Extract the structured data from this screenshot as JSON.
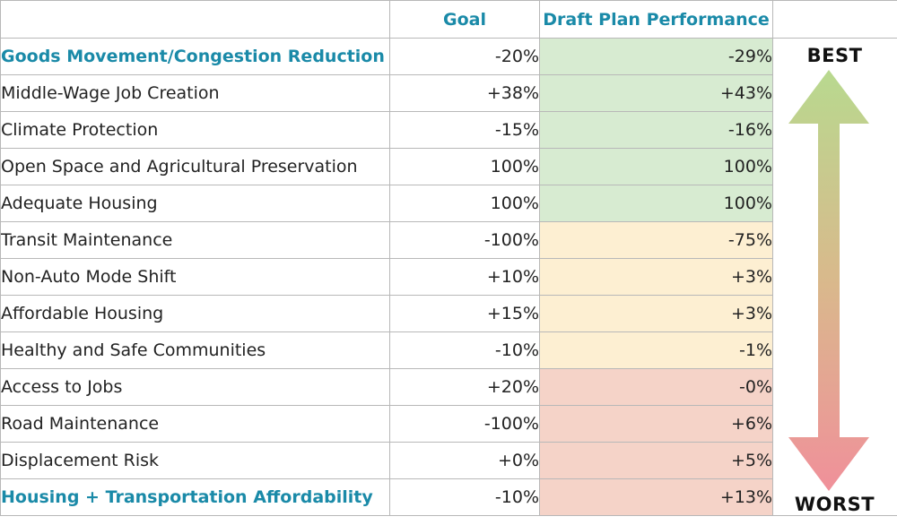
{
  "header": {
    "metric": "",
    "goal": "Goal",
    "draft": "Draft Plan Performance",
    "scale": ""
  },
  "scale": {
    "best": "BEST",
    "worst": "WORST",
    "top_color": "#b8d98f",
    "bottom_color": "#f0909a"
  },
  "colors": {
    "green": "#d7ebd1",
    "yellow": "#fdefd2",
    "red": "#f5d3c8",
    "accent": "#1a8aa8"
  },
  "rows": [
    {
      "metric": "Goods Movement/Congestion Reduction",
      "goal": "-20%",
      "draft": "-29%",
      "status": "green"
    },
    {
      "metric": "Middle-Wage Job Creation",
      "goal": "+38%",
      "draft": "+43%",
      "status": "green"
    },
    {
      "metric": "Climate Protection",
      "goal": "-15%",
      "draft": "-16%",
      "status": "green"
    },
    {
      "metric": "Open Space and Agricultural Preservation",
      "goal": "100%",
      "draft": "100%",
      "status": "green"
    },
    {
      "metric": "Adequate Housing",
      "goal": "100%",
      "draft": "100%",
      "status": "green"
    },
    {
      "metric": "Transit Maintenance",
      "goal": "-100%",
      "draft": "-75%",
      "status": "yellow"
    },
    {
      "metric": "Non-Auto Mode Shift",
      "goal": "+10%",
      "draft": "+3%",
      "status": "yellow"
    },
    {
      "metric": "Affordable Housing",
      "goal": "+15%",
      "draft": "+3%",
      "status": "yellow"
    },
    {
      "metric": "Healthy and Safe Communities",
      "goal": "-10%",
      "draft": "-1%",
      "status": "yellow"
    },
    {
      "metric": "Access to Jobs",
      "goal": "+20%",
      "draft": "-0%",
      "status": "red"
    },
    {
      "metric": "Road Maintenance",
      "goal": "-100%",
      "draft": "+6%",
      "status": "red"
    },
    {
      "metric": "Displacement Risk",
      "goal": "+0%",
      "draft": "+5%",
      "status": "red"
    },
    {
      "metric": "Housing + Transportation Affordability",
      "goal": "-10%",
      "draft": "+13%",
      "status": "red"
    }
  ]
}
